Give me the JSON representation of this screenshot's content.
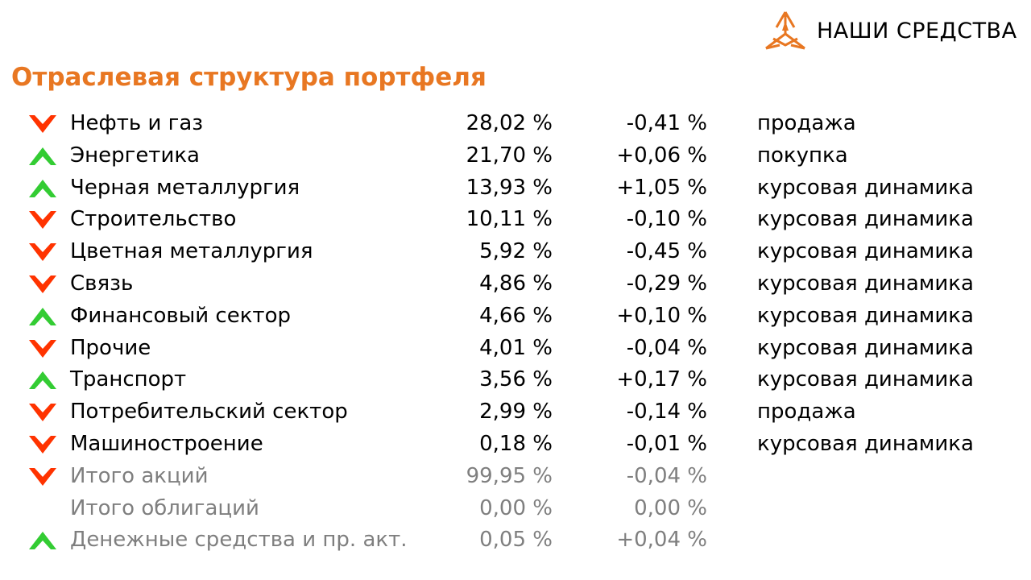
{
  "header": {
    "logo_text": "НАШИ СРЕДСТВА",
    "logo_icon": "nashi-sredstva-logo-icon",
    "title": "Отраслевая структура портфеля"
  },
  "colors": {
    "accent": "#E87722",
    "down": "#FF3300",
    "up": "#33CC33",
    "muted_text": "#7F7F7F"
  },
  "rows": [
    {
      "direction": "down",
      "name": "Нефть и газ",
      "share": "28,02 %",
      "change": "-0,41 %",
      "action": "продажа"
    },
    {
      "direction": "up",
      "name": "Энергетика",
      "share": "21,70 %",
      "change": "+0,06 %",
      "action": "покупка"
    },
    {
      "direction": "up",
      "name": "Черная металлургия",
      "share": "13,93 %",
      "change": "+1,05 %",
      "action": "курсовая динамика"
    },
    {
      "direction": "down",
      "name": "Строительство",
      "share": "10,11 %",
      "change": "-0,10 %",
      "action": "курсовая динамика"
    },
    {
      "direction": "down",
      "name": "Цветная металлургия",
      "share": "5,92 %",
      "change": "-0,45 %",
      "action": "курсовая динамика"
    },
    {
      "direction": "down",
      "name": "Связь",
      "share": "4,86 %",
      "change": "-0,29 %",
      "action": "курсовая динамика"
    },
    {
      "direction": "up",
      "name": "Финансовый сектор",
      "share": "4,66 %",
      "change": "+0,10 %",
      "action": "курсовая динамика"
    },
    {
      "direction": "down",
      "name": "Прочие",
      "share": "4,01 %",
      "change": "-0,04 %",
      "action": "курсовая динамика"
    },
    {
      "direction": "up",
      "name": "Транспорт",
      "share": "3,56 %",
      "change": "+0,17 %",
      "action": "курсовая динамика"
    },
    {
      "direction": "down",
      "name": "Потребительский сектор",
      "share": "2,99 %",
      "change": "-0,14 %",
      "action": "продажа"
    },
    {
      "direction": "down",
      "name": "Машиностроение",
      "share": "0,18 %",
      "change": "-0,01 %",
      "action": "курсовая динамика"
    }
  ],
  "totals": [
    {
      "direction": "down",
      "name": "Итого акций",
      "share": "99,95 %",
      "change": "-0,04 %"
    },
    {
      "direction": "none",
      "name": "Итого облигаций",
      "share": "0,00 %",
      "change": "0,00 %"
    },
    {
      "direction": "up",
      "name": "Денежные средства и пр. акт.",
      "share": "0,05 %",
      "change": "+0,04 %"
    }
  ]
}
